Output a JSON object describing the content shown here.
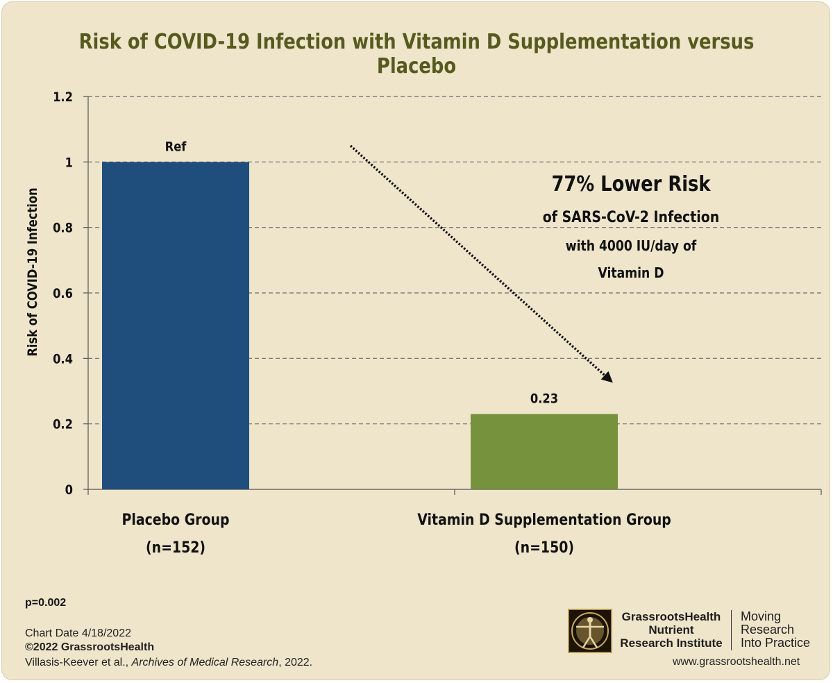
{
  "chart_data": {
    "type": "bar",
    "title": "Risk of COVID-19 Infection with Vitamin D Supplementation versus Placebo",
    "ylabel": "Risk of COVID-19 Infection",
    "xlabel": "",
    "ylim": [
      0,
      1.2
    ],
    "yticks": [
      "0",
      "0.2",
      "0.4",
      "0.6",
      "0.8",
      "1",
      "1.2"
    ],
    "grid": true,
    "categories": [
      {
        "name": "Placebo Group",
        "n": "(n=152)"
      },
      {
        "name": "Vitamin D Supplementation Group",
        "n": "(n=150)"
      }
    ],
    "values": [
      1.0,
      0.23
    ],
    "value_labels": [
      "Ref",
      "0.23"
    ],
    "bar_colors": [
      "#1f4e7d",
      "#76923c"
    ],
    "annotation": {
      "headline": "77% Lower Risk",
      "line1": "of SARS-CoV-2 Infection",
      "line2": "with 4000 IU/day of",
      "line3": "Vitamin D"
    }
  },
  "footer": {
    "pvalue": "p=0.002",
    "chart_date": "Chart Date 4/18/2022",
    "copyright": "©2022 GrassrootsHealth",
    "citation_authors": "Villasis-Keever et al., ",
    "citation_journal": "Archives of Medical Research",
    "citation_year": ", 2022."
  },
  "branding": {
    "org_line1": "GrassrootsHealth",
    "org_line2": "Nutrient",
    "org_line3": "Research Institute",
    "tagline1": "Moving",
    "tagline2": "Research",
    "tagline3": "Into Practice",
    "website": "www.grassrootshealth.net",
    "logo_icon": "vitruvian-man-icon"
  },
  "colors": {
    "background": "#efe5cb",
    "title": "#575a1f",
    "accent_gold": "#b89a52"
  }
}
